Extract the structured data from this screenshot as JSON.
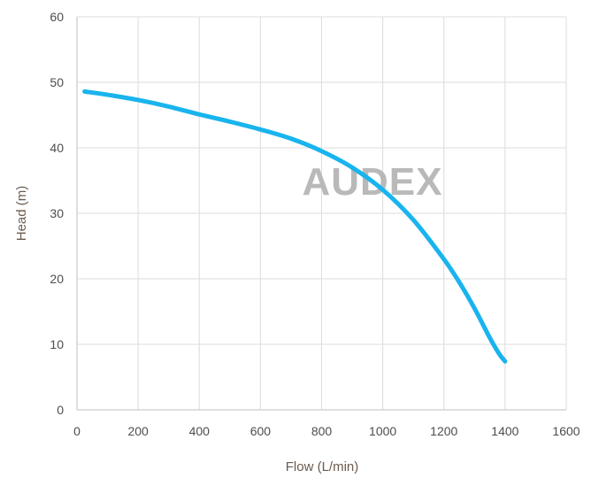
{
  "chart_data": {
    "type": "line",
    "title": "",
    "xlabel": "Flow (L/min)",
    "ylabel": "Head (m)",
    "xlim": [
      0,
      1600
    ],
    "ylim": [
      0,
      60
    ],
    "xticks": [
      0,
      200,
      400,
      600,
      800,
      1000,
      1200,
      1400,
      1600
    ],
    "yticks": [
      0,
      10,
      20,
      30,
      40,
      50,
      60
    ],
    "grid": true,
    "legend": "none",
    "watermark": "AUDEX",
    "series": [
      {
        "color": "#19b4ee",
        "x": [
          25,
          100,
          200,
          300,
          400,
          500,
          600,
          700,
          800,
          900,
          1000,
          1100,
          1200,
          1250,
          1300,
          1350,
          1380,
          1400
        ],
        "y": [
          48.6,
          48.1,
          47.3,
          46.3,
          45.1,
          44.0,
          42.8,
          41.4,
          39.5,
          37.0,
          33.6,
          29.0,
          23.0,
          19.5,
          15.5,
          11.0,
          8.6,
          7.4
        ]
      }
    ]
  }
}
